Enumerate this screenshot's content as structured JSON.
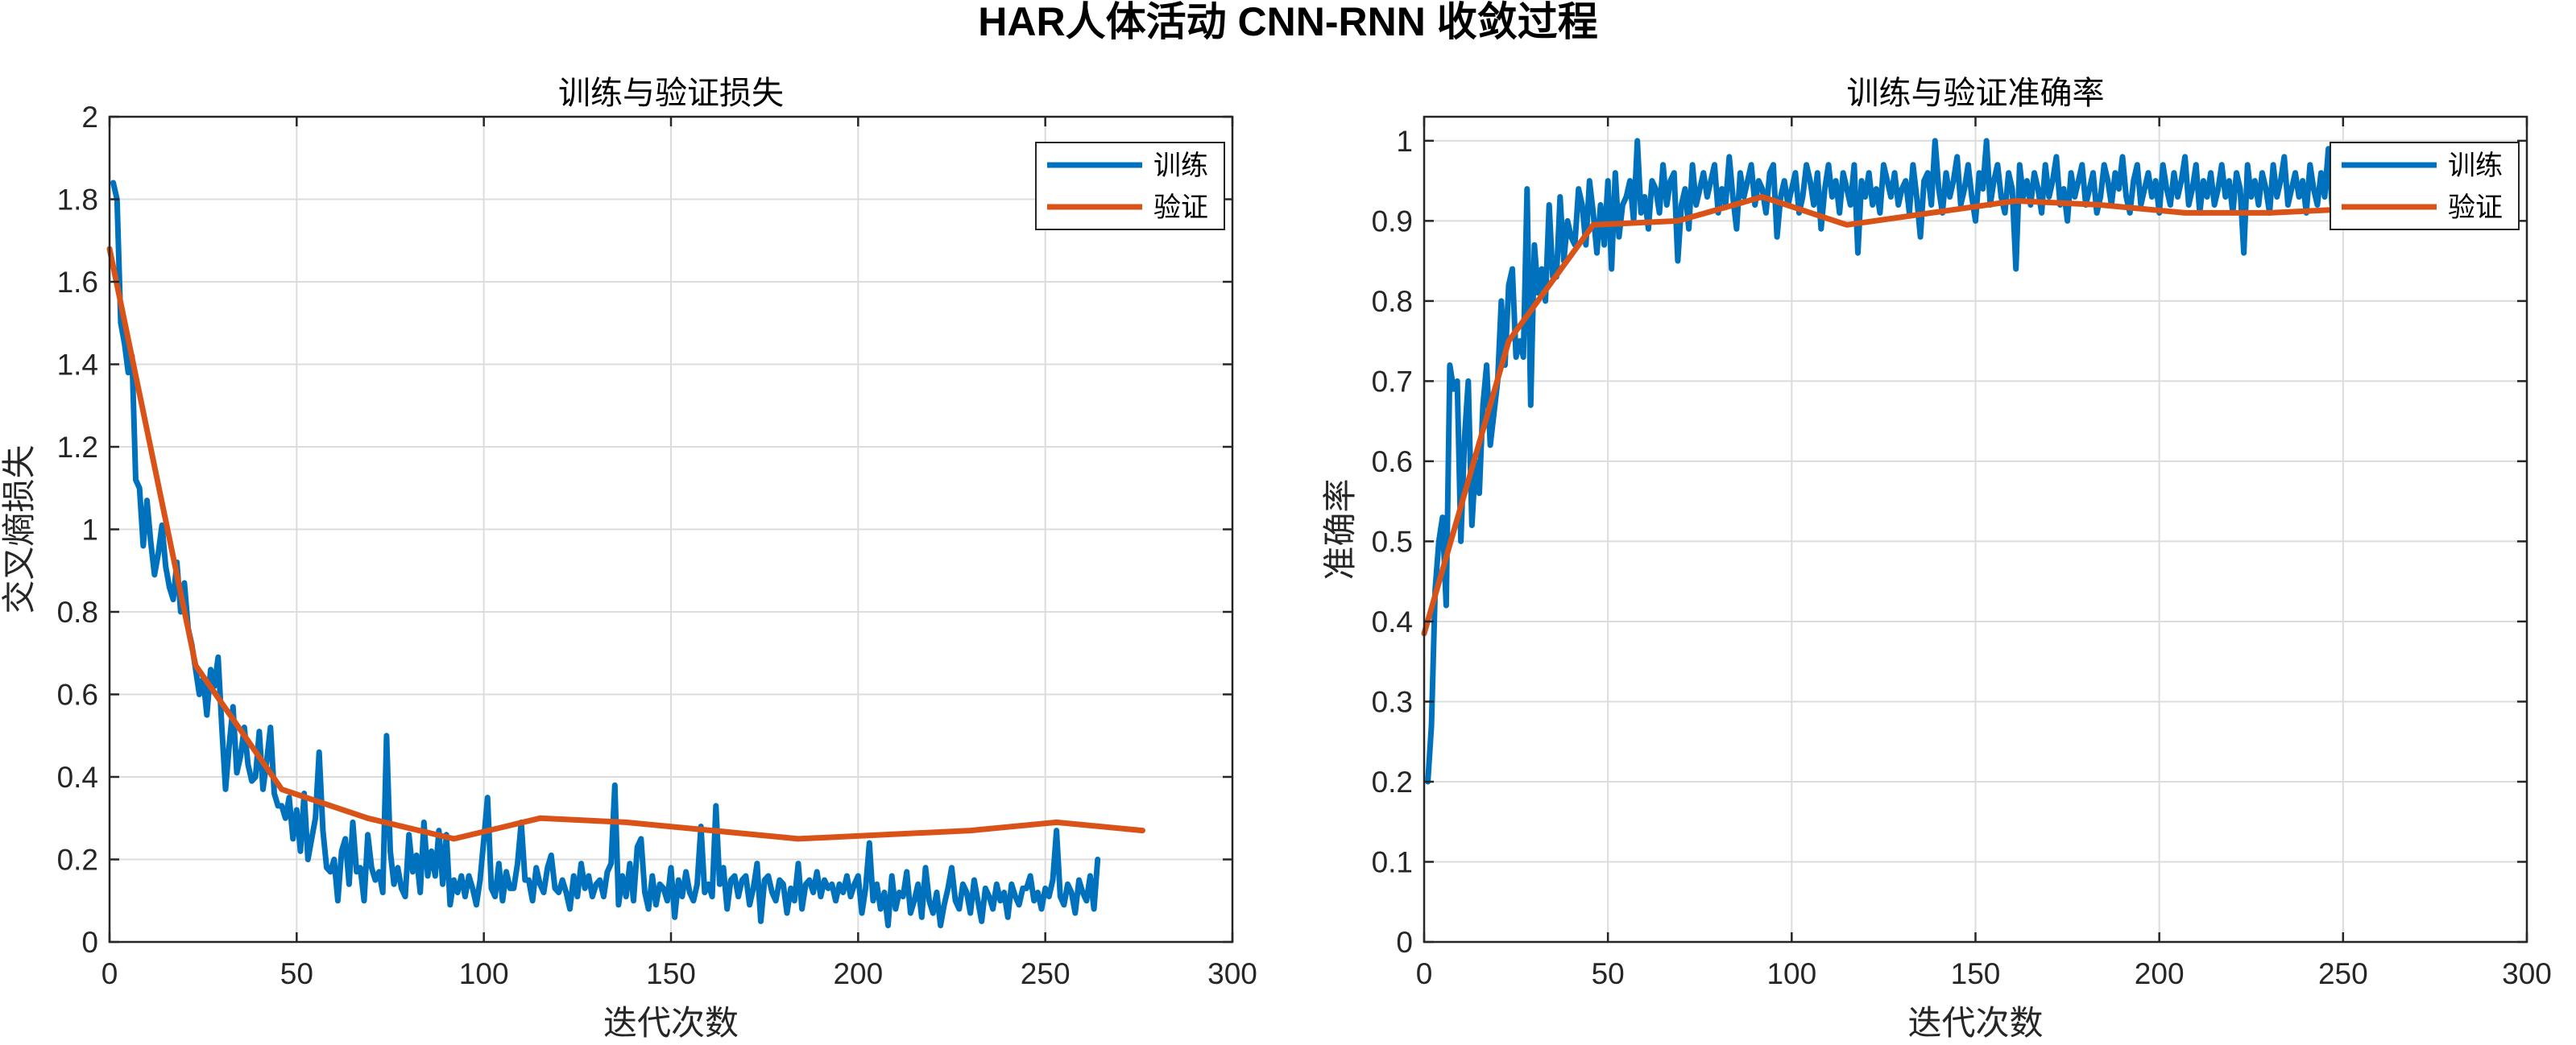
{
  "figure": {
    "title": "HAR人体活动 CNN-RNN 收敛过程"
  },
  "chart_data": [
    {
      "type": "line",
      "title": "训练与验证损失",
      "xlabel": "迭代次数",
      "ylabel": "交叉熵损失",
      "xlim": [
        0,
        300
      ],
      "ylim": [
        0,
        2
      ],
      "xticks": [
        0,
        50,
        100,
        150,
        200,
        250,
        300
      ],
      "yticks": [
        0,
        0.2,
        0.4,
        0.6,
        0.8,
        1,
        1.2,
        1.4,
        1.6,
        1.8,
        2
      ],
      "ytick_labels": [
        "0",
        "0.2",
        "0.4",
        "0.6",
        "0.8",
        "1",
        "1.2",
        "1.4",
        "1.6",
        "1.8",
        "2"
      ],
      "grid": true,
      "legend_position": "top-right",
      "series": [
        {
          "name": "训练",
          "color": "#0072BD",
          "x_start": 1,
          "x_step": 1,
          "values": [
            1.84,
            1.8,
            1.5,
            1.45,
            1.38,
            1.42,
            1.12,
            1.1,
            0.96,
            1.07,
            0.97,
            0.89,
            0.94,
            1.01,
            0.91,
            0.86,
            0.83,
            0.92,
            0.8,
            0.87,
            0.76,
            0.72,
            0.66,
            0.6,
            0.64,
            0.55,
            0.66,
            0.62,
            0.69,
            0.52,
            0.37,
            0.48,
            0.57,
            0.41,
            0.45,
            0.52,
            0.43,
            0.39,
            0.4,
            0.51,
            0.37,
            0.44,
            0.52,
            0.36,
            0.33,
            0.33,
            0.3,
            0.35,
            0.25,
            0.32,
            0.22,
            0.36,
            0.2,
            0.25,
            0.3,
            0.46,
            0.27,
            0.18,
            0.17,
            0.2,
            0.1,
            0.22,
            0.25,
            0.14,
            0.29,
            0.17,
            0.18,
            0.1,
            0.26,
            0.18,
            0.15,
            0.17,
            0.12,
            0.5,
            0.22,
            0.14,
            0.18,
            0.13,
            0.11,
            0.26,
            0.17,
            0.21,
            0.12,
            0.29,
            0.16,
            0.22,
            0.16,
            0.27,
            0.14,
            0.26,
            0.09,
            0.15,
            0.12,
            0.16,
            0.11,
            0.16,
            0.13,
            0.09,
            0.15,
            0.25,
            0.35,
            0.13,
            0.11,
            0.19,
            0.1,
            0.17,
            0.13,
            0.13,
            0.19,
            0.29,
            0.15,
            0.15,
            0.1,
            0.18,
            0.14,
            0.12,
            0.18,
            0.21,
            0.13,
            0.12,
            0.15,
            0.12,
            0.08,
            0.16,
            0.11,
            0.19,
            0.13,
            0.16,
            0.11,
            0.14,
            0.15,
            0.11,
            0.17,
            0.19,
            0.38,
            0.09,
            0.16,
            0.11,
            0.19,
            0.1,
            0.23,
            0.25,
            0.12,
            0.08,
            0.16,
            0.09,
            0.14,
            0.13,
            0.1,
            0.18,
            0.06,
            0.15,
            0.11,
            0.17,
            0.12,
            0.1,
            0.14,
            0.28,
            0.12,
            0.14,
            0.11,
            0.33,
            0.14,
            0.18,
            0.08,
            0.15,
            0.16,
            0.11,
            0.15,
            0.16,
            0.09,
            0.13,
            0.19,
            0.05,
            0.15,
            0.16,
            0.12,
            0.1,
            0.15,
            0.14,
            0.07,
            0.13,
            0.1,
            0.19,
            0.08,
            0.14,
            0.15,
            0.12,
            0.17,
            0.11,
            0.15,
            0.13,
            0.14,
            0.1,
            0.14,
            0.12,
            0.16,
            0.11,
            0.14,
            0.16,
            0.07,
            0.13,
            0.24,
            0.1,
            0.14,
            0.08,
            0.12,
            0.04,
            0.16,
            0.08,
            0.12,
            0.11,
            0.17,
            0.07,
            0.1,
            0.14,
            0.06,
            0.18,
            0.1,
            0.07,
            0.12,
            0.04,
            0.09,
            0.13,
            0.18,
            0.1,
            0.08,
            0.14,
            0.12,
            0.07,
            0.15,
            0.1,
            0.05,
            0.13,
            0.11,
            0.08,
            0.14,
            0.1,
            0.12,
            0.06,
            0.14,
            0.11,
            0.09,
            0.13,
            0.13,
            0.16,
            0.1,
            0.12,
            0.08,
            0.13,
            0.11,
            0.15,
            0.27,
            0.11,
            0.09,
            0.14,
            0.12,
            0.07,
            0.15,
            0.12,
            0.1,
            0.16,
            0.08,
            0.2
          ]
        },
        {
          "name": "验证",
          "color": "#D95319",
          "x": [
            0,
            23,
            46,
            69,
            92,
            115,
            138,
            161,
            184,
            207,
            230,
            253,
            276
          ],
          "values": [
            1.68,
            0.67,
            0.37,
            0.3,
            0.25,
            0.3,
            0.29,
            0.27,
            0.25,
            0.26,
            0.27,
            0.29,
            0.27
          ]
        }
      ]
    },
    {
      "type": "line",
      "title": "训练与验证准确率",
      "xlabel": "迭代次数",
      "ylabel": "准确率",
      "xlim": [
        0,
        300
      ],
      "ylim": [
        0,
        1.03
      ],
      "xticks": [
        0,
        50,
        100,
        150,
        200,
        250,
        300
      ],
      "yticks": [
        0,
        0.1,
        0.2,
        0.3,
        0.4,
        0.5,
        0.6,
        0.7,
        0.8,
        0.9,
        1
      ],
      "ytick_labels": [
        "0",
        "0.1",
        "0.2",
        "0.3",
        "0.4",
        "0.5",
        "0.6",
        "0.7",
        "0.8",
        "0.9",
        "1"
      ],
      "grid": true,
      "legend_position": "top-right",
      "series": [
        {
          "name": "训练",
          "color": "#0072BD",
          "x_start": 1,
          "x_step": 1,
          "values": [
            0.2,
            0.27,
            0.44,
            0.5,
            0.53,
            0.42,
            0.72,
            0.69,
            0.7,
            0.5,
            0.63,
            0.7,
            0.52,
            0.6,
            0.56,
            0.67,
            0.72,
            0.62,
            0.66,
            0.7,
            0.8,
            0.72,
            0.82,
            0.84,
            0.73,
            0.75,
            0.73,
            0.94,
            0.67,
            0.87,
            0.81,
            0.84,
            0.8,
            0.92,
            0.83,
            0.83,
            0.93,
            0.85,
            0.9,
            0.88,
            0.87,
            0.94,
            0.92,
            0.87,
            0.95,
            0.91,
            0.86,
            0.92,
            0.87,
            0.95,
            0.84,
            0.96,
            0.88,
            0.92,
            0.93,
            0.95,
            0.9,
            1.0,
            0.91,
            0.93,
            0.89,
            0.95,
            0.94,
            0.91,
            0.97,
            0.92,
            0.95,
            0.96,
            0.85,
            0.92,
            0.94,
            0.89,
            0.97,
            0.92,
            0.94,
            0.96,
            0.93,
            0.95,
            0.97,
            0.91,
            0.94,
            0.92,
            0.98,
            0.93,
            0.89,
            0.96,
            0.93,
            0.95,
            0.97,
            0.92,
            0.95,
            0.94,
            0.91,
            0.96,
            0.97,
            0.88,
            0.93,
            0.95,
            0.92,
            0.94,
            0.96,
            0.91,
            0.93,
            0.97,
            0.95,
            0.92,
            0.96,
            0.89,
            0.94,
            0.97,
            0.93,
            0.95,
            0.91,
            0.96,
            0.94,
            0.92,
            0.97,
            0.86,
            0.95,
            0.93,
            0.96,
            0.92,
            0.94,
            0.91,
            0.97,
            0.95,
            0.93,
            0.96,
            0.92,
            0.94,
            0.95,
            0.91,
            0.97,
            0.93,
            0.88,
            0.95,
            0.96,
            0.92,
            1.0,
            0.94,
            0.91,
            0.96,
            0.93,
            0.95,
            0.98,
            0.92,
            0.94,
            0.97,
            0.93,
            0.9,
            0.96,
            0.94,
            1.0,
            0.92,
            0.95,
            0.97,
            0.93,
            0.91,
            0.96,
            0.94,
            0.84,
            0.97,
            0.93,
            0.95,
            0.92,
            0.96,
            0.94,
            0.91,
            0.97,
            0.93,
            0.95,
            0.98,
            0.92,
            0.94,
            0.9,
            0.96,
            0.93,
            0.95,
            0.97,
            0.92,
            0.94,
            0.96,
            0.91,
            0.93,
            0.97,
            0.95,
            0.92,
            0.96,
            0.94,
            0.98,
            0.93,
            0.91,
            0.95,
            0.97,
            0.92,
            0.94,
            0.96,
            0.93,
            0.95,
            0.91,
            0.97,
            0.94,
            0.92,
            0.96,
            0.93,
            0.95,
            0.98,
            0.92,
            0.94,
            0.97,
            0.91,
            0.95,
            0.93,
            0.96,
            0.92,
            0.94,
            0.97,
            0.93,
            0.95,
            0.91,
            0.96,
            0.94,
            0.86,
            0.97,
            0.93,
            0.95,
            0.92,
            0.96,
            0.94,
            0.91,
            0.97,
            0.93,
            0.95,
            0.98,
            0.92,
            0.94,
            0.96,
            0.93,
            0.95,
            0.91,
            0.97,
            0.94,
            0.92,
            0.96,
            0.93,
            0.99,
            0.92,
            0.94,
            0.97,
            0.93,
            0.95,
            0.91,
            0.96,
            0.94,
            0.92,
            0.97,
            0.93,
            0.95,
            0.92
          ]
        },
        {
          "name": "验证",
          "color": "#D95319",
          "x": [
            0,
            23,
            46,
            69,
            92,
            115,
            138,
            161,
            184,
            207,
            230,
            253,
            276
          ],
          "values": [
            0.385,
            0.75,
            0.895,
            0.9,
            0.93,
            0.895,
            0.91,
            0.925,
            0.92,
            0.91,
            0.91,
            0.915,
            0.9
          ]
        }
      ]
    }
  ]
}
